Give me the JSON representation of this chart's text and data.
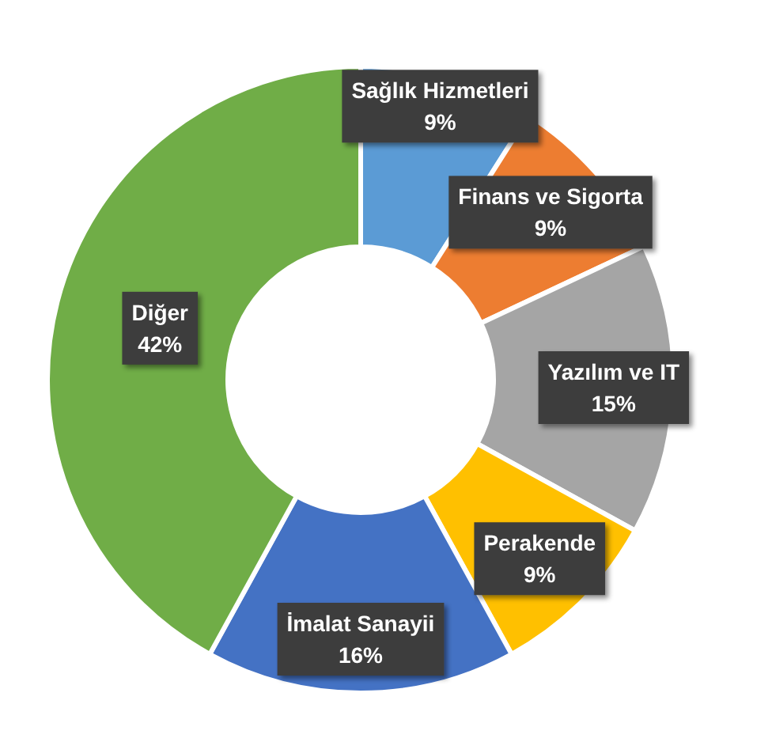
{
  "chart_data": {
    "type": "donut",
    "categories": [
      "Sağlık Hizmetleri",
      "Finans ve Sigorta",
      "Yazılım ve IT",
      "Perakende",
      "İmalat Sanayii",
      "Diğer"
    ],
    "values": [
      9,
      9,
      15,
      9,
      16,
      42
    ],
    "colors": [
      "#5b9bd5",
      "#ed7d31",
      "#a5a5a5",
      "#ffc000",
      "#4472c4",
      "#70ad47"
    ],
    "value_labels": [
      "9%",
      "9%",
      "15%",
      "9%",
      "16%",
      "42%"
    ]
  }
}
